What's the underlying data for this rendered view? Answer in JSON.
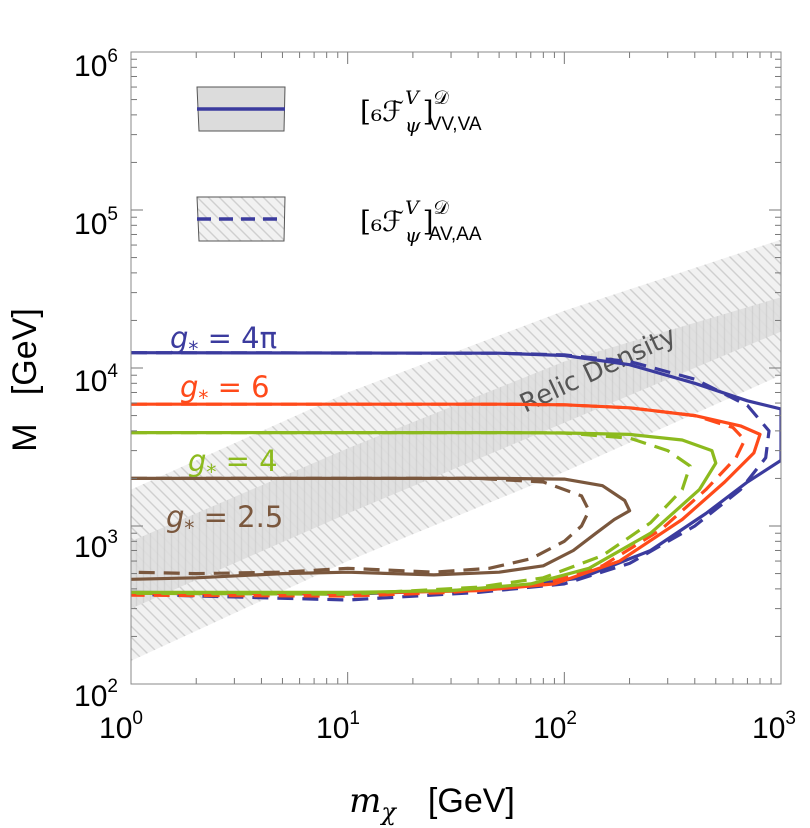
{
  "chart_data": {
    "type": "line",
    "xscale": "log",
    "yscale": "log",
    "xlim": [
      1,
      1000
    ],
    "ylim": [
      100,
      1000000
    ],
    "xlabel": {
      "main": "m",
      "sub": "χ",
      "unit": "[GeV]"
    },
    "ylabel": "M   [GeV]",
    "x_ticks": [
      {
        "base": "10",
        "exp": "0",
        "value": 1
      },
      {
        "base": "10",
        "exp": "1",
        "value": 10
      },
      {
        "base": "10",
        "exp": "2",
        "value": 100
      },
      {
        "base": "10",
        "exp": "3",
        "value": 1000
      }
    ],
    "y_ticks": [
      {
        "base": "10",
        "exp": "2",
        "value": 100
      },
      {
        "base": "10",
        "exp": "3",
        "value": 1000
      },
      {
        "base": "10",
        "exp": "4",
        "value": 10000
      },
      {
        "base": "10",
        "exp": "5",
        "value": 100000
      },
      {
        "base": "10",
        "exp": "6",
        "value": 1000000
      }
    ],
    "legend": [
      {
        "text": "[₆ℱ",
        "sup": "V",
        "sub": "ψ",
        "close": "]",
        "supscript": "𝒟",
        "subscript": "VV,VA",
        "style": "solid",
        "fill": "gray"
      },
      {
        "text": "[₆ℱ",
        "sup": "V",
        "sub": "ψ",
        "close": "]",
        "supscript": "𝒟",
        "subscript": "AV,AA",
        "style": "dashed",
        "fill": "hatched"
      }
    ],
    "bands": [
      {
        "name": "VV,VA relic band",
        "style": "solid-gray",
        "lower": [
          [
            1,
            300
          ],
          [
            10,
            1200
          ],
          [
            100,
            4500
          ],
          [
            1000,
            17000
          ]
        ],
        "upper": [
          [
            1,
            800
          ],
          [
            10,
            3100
          ],
          [
            100,
            11000
          ],
          [
            1000,
            28000
          ]
        ]
      },
      {
        "name": "AV,AA relic band",
        "style": "hatched",
        "lower": [
          [
            1,
            140
          ],
          [
            10,
            600
          ],
          [
            100,
            2200
          ],
          [
            1000,
            9000
          ]
        ],
        "upper": [
          [
            1,
            1700
          ],
          [
            10,
            7000
          ],
          [
            100,
            23000
          ],
          [
            1000,
            65000
          ]
        ]
      }
    ],
    "band_label": "Relic Density",
    "series": [
      {
        "name": "g* = 4π",
        "label": "g",
        "label_sub": "*",
        "label_value": " = 4π",
        "color": "#3b3b9e",
        "solid": [
          [
            1,
            12500
          ],
          [
            50,
            12400
          ],
          [
            100,
            12000
          ],
          [
            200,
            10500
          ],
          [
            400,
            8000
          ],
          [
            700,
            6200
          ],
          [
            1000,
            5500
          ],
          [
            1000,
            2600
          ],
          [
            700,
            1900
          ],
          [
            450,
            1200
          ],
          [
            250,
            700
          ],
          [
            120,
            470
          ],
          [
            50,
            400
          ],
          [
            10,
            370
          ],
          [
            1,
            380
          ]
        ],
        "dashed": [
          [
            1,
            12500
          ],
          [
            50,
            12400
          ],
          [
            100,
            12100
          ],
          [
            200,
            11000
          ],
          [
            400,
            8500
          ],
          [
            700,
            5800
          ],
          [
            880,
            4000
          ],
          [
            850,
            2700
          ],
          [
            650,
            1700
          ],
          [
            400,
            1000
          ],
          [
            200,
            580
          ],
          [
            100,
            430
          ],
          [
            40,
            380
          ],
          [
            10,
            340
          ],
          [
            1,
            370
          ]
        ]
      },
      {
        "name": "g* = 6",
        "label": "g",
        "label_sub": "*",
        "label_value": " = 6",
        "color": "#ff4a1a",
        "solid": [
          [
            1,
            5900
          ],
          [
            50,
            5900
          ],
          [
            100,
            5850
          ],
          [
            200,
            5600
          ],
          [
            400,
            5000
          ],
          [
            650,
            4300
          ],
          [
            800,
            3800
          ],
          [
            750,
            2900
          ],
          [
            550,
            1900
          ],
          [
            350,
            1100
          ],
          [
            180,
            600
          ],
          [
            90,
            430
          ],
          [
            40,
            390
          ],
          [
            10,
            375
          ],
          [
            1,
            375
          ]
        ],
        "dashed": [
          [
            1,
            5900
          ],
          [
            50,
            5900
          ],
          [
            100,
            5850
          ],
          [
            200,
            5600
          ],
          [
            400,
            5000
          ],
          [
            600,
            4200
          ],
          [
            680,
            3500
          ],
          [
            620,
            2700
          ],
          [
            450,
            1700
          ],
          [
            280,
            950
          ],
          [
            150,
            560
          ],
          [
            80,
            430
          ],
          [
            30,
            380
          ],
          [
            10,
            360
          ],
          [
            1,
            365
          ]
        ]
      },
      {
        "name": "g* = 4",
        "label": "g",
        "label_sub": "*",
        "label_value": " = 4",
        "color": "#8cba1e",
        "solid": [
          [
            1,
            3900
          ],
          [
            50,
            3900
          ],
          [
            100,
            3880
          ],
          [
            200,
            3800
          ],
          [
            350,
            3500
          ],
          [
            480,
            3000
          ],
          [
            500,
            2500
          ],
          [
            420,
            1700
          ],
          [
            250,
            900
          ],
          [
            130,
            540
          ],
          [
            70,
            430
          ],
          [
            30,
            390
          ],
          [
            10,
            380
          ],
          [
            1,
            380
          ]
        ],
        "dashed": [
          [
            1,
            3900
          ],
          [
            50,
            3900
          ],
          [
            100,
            3880
          ],
          [
            200,
            3600
          ],
          [
            300,
            3000
          ],
          [
            380,
            2400
          ],
          [
            350,
            1700
          ],
          [
            250,
            1050
          ],
          [
            150,
            650
          ],
          [
            80,
            470
          ],
          [
            40,
            410
          ],
          [
            10,
            370
          ],
          [
            1,
            375
          ]
        ]
      },
      {
        "name": "g* = 2.5",
        "label": "g",
        "label_sub": "*",
        "label_value": " = 2.5",
        "color": "#7a573d",
        "solid": [
          [
            1,
            2000
          ],
          [
            50,
            2000
          ],
          [
            100,
            1980
          ],
          [
            150,
            1800
          ],
          [
            190,
            1450
          ],
          [
            200,
            1250
          ],
          [
            170,
            1100
          ],
          [
            140,
            900
          ],
          [
            110,
            700
          ],
          [
            80,
            560
          ],
          [
            50,
            510
          ],
          [
            25,
            490
          ],
          [
            10,
            510
          ],
          [
            5,
            500
          ],
          [
            2,
            470
          ],
          [
            1,
            460
          ]
        ],
        "dashed": [
          [
            1,
            2000
          ],
          [
            40,
            2000
          ],
          [
            80,
            1900
          ],
          [
            120,
            1550
          ],
          [
            130,
            1250
          ],
          [
            120,
            1000
          ],
          [
            100,
            800
          ],
          [
            70,
            620
          ],
          [
            45,
            540
          ],
          [
            25,
            510
          ],
          [
            10,
            540
          ],
          [
            5,
            510
          ],
          [
            2,
            500
          ],
          [
            1,
            510
          ]
        ]
      }
    ]
  }
}
